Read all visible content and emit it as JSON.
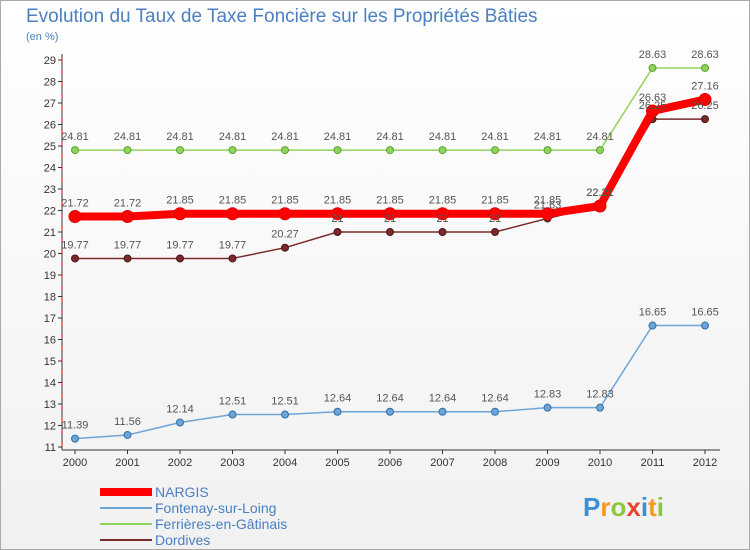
{
  "chart_data": {
    "type": "line",
    "title": "Evolution du Taux de Taxe Foncière sur les Propriétés Bâties",
    "subtitle": "(en %)",
    "xlabel": "",
    "ylabel": "",
    "ylim": [
      11,
      29
    ],
    "yticks": [
      "11",
      "12",
      "13",
      "14",
      "15",
      "16",
      "17",
      "18",
      "19",
      "20",
      "21",
      "22",
      "23",
      "24",
      "25",
      "26",
      "27",
      "28",
      "29"
    ],
    "categories": [
      "2000",
      "2001",
      "2002",
      "2003",
      "2004",
      "2005",
      "2006",
      "2007",
      "2008",
      "2009",
      "2010",
      "2011",
      "2012"
    ],
    "series": [
      {
        "name": "NARGIS",
        "color": "#ff0000",
        "values": [
          21.72,
          21.72,
          21.85,
          21.85,
          21.85,
          21.85,
          21.85,
          21.85,
          21.85,
          21.85,
          22.21,
          26.63,
          27.16
        ],
        "labels": [
          "21.72",
          "21.72",
          "21.85",
          "21.85",
          "21.85",
          "21.85",
          "21.85",
          "21.85",
          "21.85",
          "21.85",
          "22.21",
          "26.63",
          "27.16"
        ]
      },
      {
        "name": "Fontenay-sur-Loing",
        "color": "#6fa5d6",
        "values": [
          11.39,
          11.56,
          12.14,
          12.51,
          12.51,
          12.64,
          12.64,
          12.64,
          12.64,
          12.83,
          12.83,
          16.65,
          16.65
        ],
        "labels": [
          "11.39",
          "11.56",
          "12.14",
          "12.51",
          "12.51",
          "12.64",
          "12.64",
          "12.64",
          "12.64",
          "12.83",
          "12.83",
          "16.65",
          "16.65"
        ]
      },
      {
        "name": "Ferrières-en-Gâtinais",
        "color": "#8fd45a",
        "values": [
          24.81,
          24.81,
          24.81,
          24.81,
          24.81,
          24.81,
          24.81,
          24.81,
          24.81,
          24.81,
          24.81,
          28.63,
          28.63
        ],
        "labels": [
          "24.81",
          "24.81",
          "24.81",
          "24.81",
          "24.81",
          "24.81",
          "24.81",
          "24.81",
          "24.81",
          "24.81",
          "24.81",
          "28.63",
          "28.63"
        ]
      },
      {
        "name": "Dordives",
        "color": "#7a2a2a",
        "values": [
          19.77,
          19.77,
          19.77,
          19.77,
          20.27,
          21,
          21,
          21,
          21,
          21.63,
          22.21,
          26.25,
          26.25
        ],
        "labels": [
          "19.77",
          "19.77",
          "19.77",
          "19.77",
          "20.27",
          "21",
          "21",
          "21",
          "21",
          "21.63",
          "22.21",
          "26.25",
          "26.25"
        ]
      }
    ],
    "legend": "bottom-left"
  },
  "logo": {
    "letters": [
      "P",
      "r",
      "o",
      "x",
      "i",
      "t",
      "i"
    ],
    "colors": [
      "#3a8fd6",
      "#f59b1c",
      "#8cc63f",
      "#e8452c",
      "#3a8fd6",
      "#f59b1c",
      "#8cc63f"
    ]
  }
}
